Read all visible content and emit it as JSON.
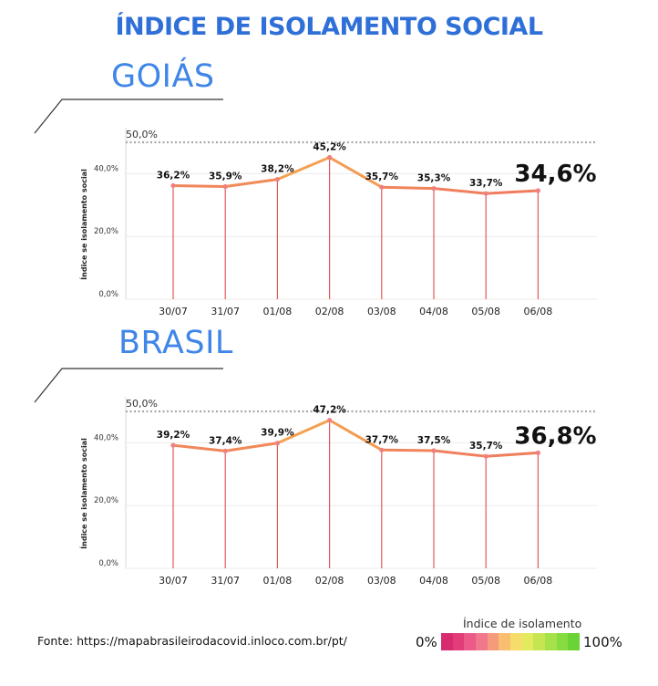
{
  "title": "ÍNDICE DE ISOLAMENTO SOCIAL",
  "source": "Fonte: https://mapabrasileirodacovid.inloco.com.br/pt/",
  "legend": {
    "title": "Índice de isolamento",
    "min_label": "0%",
    "max_label": "100%",
    "colors": [
      "#d62b6e",
      "#e23d79",
      "#ec5a8a",
      "#f1788c",
      "#f59a7a",
      "#f8bf70",
      "#f6dd6a",
      "#e3ea5e",
      "#c5e652",
      "#a6e14a",
      "#86db40",
      "#6ad437"
    ]
  },
  "chart_data": [
    {
      "type": "line",
      "title": "GOIÁS",
      "ylabel": "Índice se isolamento social",
      "ylim": [
        0,
        50
      ],
      "yticks": [
        "0,0%",
        "20,0%",
        "40,0%"
      ],
      "reference_line": {
        "value": 50,
        "label": "50,0%"
      },
      "categories": [
        "30/07",
        "31/07",
        "01/08",
        "02/08",
        "03/08",
        "04/08",
        "05/08",
        "06/08"
      ],
      "values": [
        36.2,
        35.9,
        38.2,
        45.2,
        35.7,
        35.3,
        33.7,
        34.6
      ],
      "labels": [
        "36,2%",
        "35,9%",
        "38,2%",
        "45,2%",
        "35,7%",
        "35,3%",
        "33,7%",
        "34,6%"
      ],
      "grid": true
    },
    {
      "type": "line",
      "title": "BRASIL",
      "ylabel": "Índice se isolamento social",
      "ylim": [
        0,
        50
      ],
      "yticks": [
        "0,0%",
        "20,0%",
        "40,0%"
      ],
      "reference_line": {
        "value": 50,
        "label": "50,0%"
      },
      "categories": [
        "30/07",
        "31/07",
        "01/08",
        "02/08",
        "03/08",
        "04/08",
        "05/08",
        "06/08"
      ],
      "values": [
        39.2,
        37.4,
        39.9,
        47.2,
        37.7,
        37.5,
        35.7,
        36.8
      ],
      "labels": [
        "39,2%",
        "37,4%",
        "39,9%",
        "47,2%",
        "37,7%",
        "37,5%",
        "35,7%",
        "36,8%"
      ],
      "grid": true
    }
  ]
}
